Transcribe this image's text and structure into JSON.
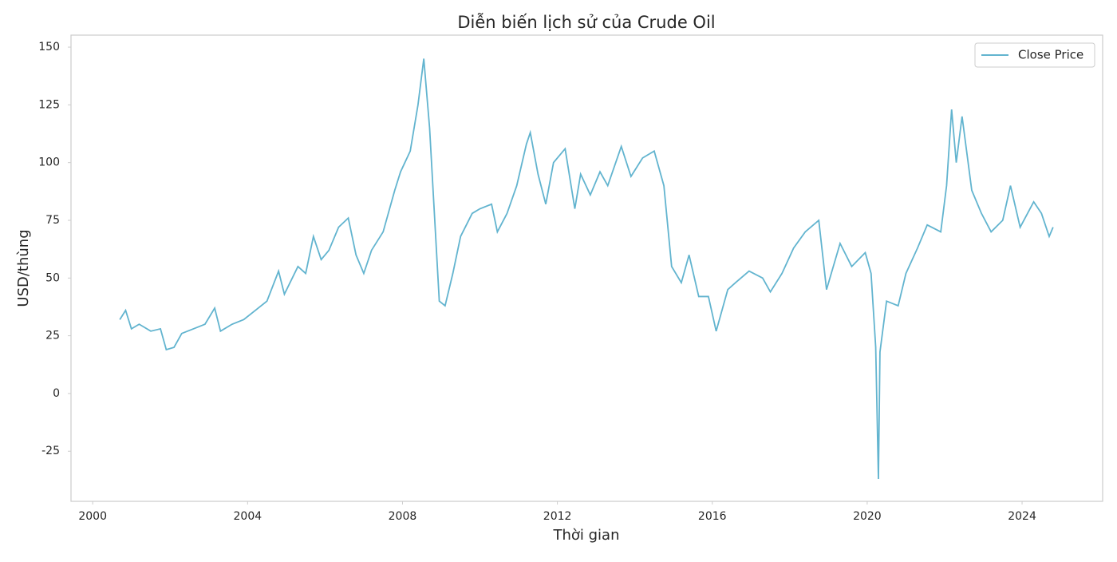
{
  "chart_data": {
    "type": "line",
    "title": "Diễn biến lịch sử của Crude Oil",
    "x_label": "Thời gian",
    "y_label": "USD/thùng",
    "x": [
      2000.7,
      2000.85,
      2001.0,
      2001.2,
      2001.5,
      2001.75,
      2001.9,
      2002.1,
      2002.3,
      2002.6,
      2002.9,
      2003.15,
      2003.3,
      2003.6,
      2003.9,
      2004.2,
      2004.5,
      2004.8,
      2004.95,
      2005.3,
      2005.5,
      2005.7,
      2005.9,
      2006.1,
      2006.35,
      2006.6,
      2006.8,
      2007.0,
      2007.2,
      2007.5,
      2007.8,
      2007.95,
      2008.2,
      2008.4,
      2008.55,
      2008.7,
      2008.85,
      2008.95,
      2009.1,
      2009.3,
      2009.5,
      2009.8,
      2010.0,
      2010.3,
      2010.45,
      2010.7,
      2010.95,
      2011.2,
      2011.3,
      2011.5,
      2011.7,
      2011.9,
      2012.2,
      2012.45,
      2012.6,
      2012.85,
      2013.1,
      2013.3,
      2013.65,
      2013.9,
      2014.2,
      2014.5,
      2014.75,
      2014.95,
      2015.2,
      2015.4,
      2015.65,
      2015.9,
      2016.1,
      2016.4,
      2016.6,
      2016.95,
      2017.3,
      2017.5,
      2017.8,
      2018.1,
      2018.4,
      2018.75,
      2018.95,
      2019.3,
      2019.6,
      2019.95,
      2020.1,
      2020.22,
      2020.29,
      2020.33,
      2020.5,
      2020.8,
      2021.0,
      2021.3,
      2021.55,
      2021.9,
      2022.05,
      2022.18,
      2022.3,
      2022.45,
      2022.7,
      2022.95,
      2023.2,
      2023.5,
      2023.7,
      2023.95,
      2024.3,
      2024.5,
      2024.7,
      2024.8
    ],
    "series": [
      {
        "name": "Close Price",
        "color": "#62b4cf",
        "values": [
          32,
          36,
          28,
          30,
          27,
          28,
          19,
          20,
          26,
          28,
          30,
          37,
          27,
          30,
          32,
          36,
          40,
          53,
          43,
          55,
          52,
          68,
          58,
          62,
          72,
          76,
          60,
          52,
          62,
          70,
          88,
          96,
          105,
          125,
          145,
          115,
          70,
          40,
          38,
          52,
          68,
          78,
          80,
          82,
          70,
          78,
          90,
          108,
          113,
          95,
          82,
          100,
          106,
          80,
          95,
          86,
          96,
          90,
          107,
          94,
          102,
          105,
          90,
          55,
          48,
          60,
          42,
          42,
          27,
          45,
          48,
          53,
          50,
          44,
          52,
          63,
          70,
          75,
          45,
          65,
          55,
          61,
          52,
          20,
          -37,
          18,
          40,
          38,
          52,
          63,
          73,
          70,
          90,
          123,
          100,
          120,
          88,
          78,
          70,
          75,
          90,
          72,
          83,
          78,
          68,
          72
        ]
      }
    ],
    "xlim": [
      1999.44,
      2026.08
    ],
    "xticks": [
      2000,
      2004,
      2008,
      2012,
      2016,
      2020,
      2024
    ],
    "ylim": [
      -46.7,
      155.2
    ],
    "yticks": [
      -25,
      0,
      25,
      50,
      75,
      100,
      125,
      150
    ],
    "legend": "upper right",
    "grid": false
  }
}
